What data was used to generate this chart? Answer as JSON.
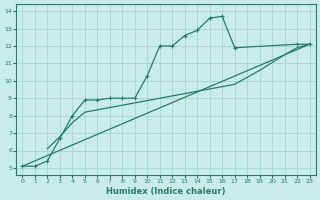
{
  "xlabel": "Humidex (Indice chaleur)",
  "xlim": [
    -0.5,
    23.5
  ],
  "ylim": [
    4.6,
    14.4
  ],
  "xticks": [
    0,
    1,
    2,
    3,
    4,
    5,
    6,
    7,
    8,
    9,
    10,
    11,
    12,
    13,
    14,
    15,
    16,
    17,
    18,
    19,
    20,
    21,
    22,
    23
  ],
  "yticks": [
    5,
    6,
    7,
    8,
    9,
    10,
    11,
    12,
    13,
    14
  ],
  "bg_color": "#c8ecec",
  "line_color": "#2a7a6a",
  "grid_color": "#a8d4d4",
  "line1": {
    "x": [
      0,
      1,
      2,
      3,
      4,
      5,
      6,
      7,
      8,
      9,
      10,
      11,
      12,
      13,
      14,
      15,
      16,
      17,
      22,
      23
    ],
    "y": [
      5.1,
      5.1,
      5.4,
      6.7,
      8.0,
      8.9,
      8.9,
      9.0,
      9.0,
      9.0,
      10.3,
      12.0,
      12.0,
      12.6,
      12.9,
      13.6,
      13.7,
      11.9,
      12.1,
      12.1
    ]
  },
  "line2": {
    "x": [
      0,
      23
    ],
    "y": [
      5.1,
      12.1
    ]
  },
  "line3": {
    "x": [
      2,
      3,
      4,
      5,
      17,
      19,
      21,
      22,
      23
    ],
    "y": [
      6.1,
      6.8,
      7.6,
      8.2,
      9.8,
      10.6,
      11.5,
      11.9,
      12.1
    ]
  }
}
